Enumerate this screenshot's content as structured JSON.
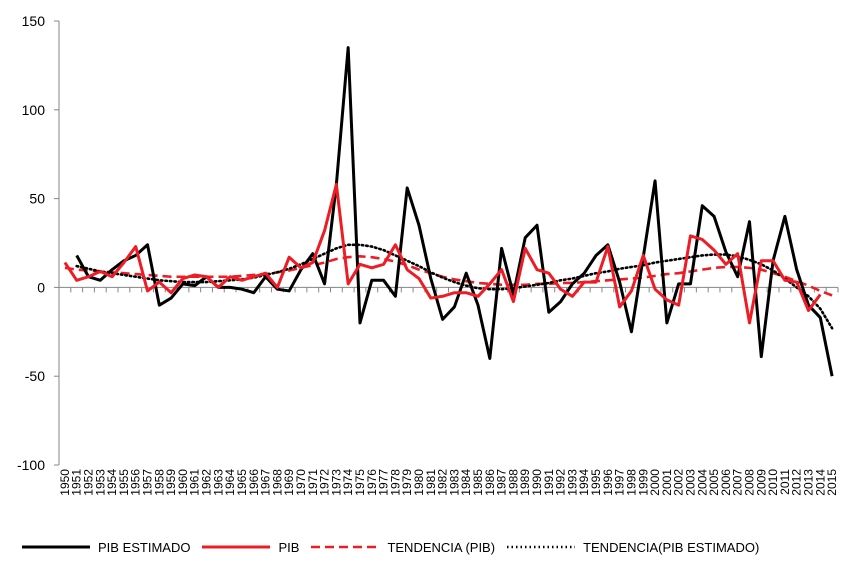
{
  "chart_data": {
    "type": "line",
    "title": "",
    "xlabel": "",
    "ylabel": "",
    "ylim": [
      -100,
      150
    ],
    "yticks": [
      "150",
      "100",
      "50",
      "0",
      "-50",
      "-100"
    ],
    "x": [
      "1950",
      "1951",
      "1952",
      "1953",
      "1954",
      "1955",
      "1956",
      "1957",
      "1958",
      "1959",
      "1960",
      "1961",
      "1962",
      "1963",
      "1964",
      "1965",
      "1966",
      "1967",
      "1968",
      "1969",
      "1970",
      "1971",
      "1972",
      "1973",
      "1974",
      "1975",
      "1976",
      "1977",
      "1978",
      "1979",
      "1980",
      "1981",
      "1982",
      "1983",
      "1984",
      "1985",
      "1986",
      "1987",
      "1988",
      "1989",
      "1990",
      "1991",
      "1992",
      "1993",
      "1994",
      "1995",
      "1996",
      "1997",
      "1998",
      "1999",
      "2000",
      "2001",
      "2002",
      "2003",
      "2004",
      "2005",
      "2006",
      "2007",
      "2008",
      "2009",
      "2010",
      "2011",
      "2012",
      "2013",
      "2014",
      "2015"
    ],
    "grid": false,
    "legend_position": "bottom",
    "series": [
      {
        "name": "PIB ESTIMADO",
        "color": "#000000",
        "style": "solid",
        "values": [
          null,
          18,
          6,
          4,
          10,
          15,
          18,
          24,
          -10,
          -6,
          2,
          1,
          6,
          0,
          0,
          -1,
          -3,
          6,
          -1,
          -2,
          10,
          19,
          2,
          58,
          135,
          -20,
          4,
          4,
          -5,
          56,
          35,
          5,
          -18,
          -11,
          8,
          -10,
          -40,
          22,
          -4,
          28,
          35,
          -14,
          -8,
          2,
          8,
          18,
          24,
          3,
          -25,
          17,
          60,
          -20,
          2,
          2,
          46,
          40,
          20,
          6,
          37,
          -39,
          15,
          40,
          10,
          -10,
          -17,
          -50
        ]
      },
      {
        "name": "PIB",
        "color": "#ee1c25",
        "style": "solid",
        "values": [
          14,
          4,
          6,
          9,
          6,
          14,
          23,
          -2,
          3,
          -3,
          5,
          7,
          6,
          0,
          6,
          4,
          6,
          8,
          0,
          17,
          11,
          14,
          32,
          58,
          2,
          13,
          11,
          13,
          24,
          10,
          5,
          -6,
          -5,
          -3,
          -3,
          -5,
          2,
          10,
          -8,
          22,
          10,
          8,
          -1,
          -5,
          3,
          3,
          23,
          -11,
          -2,
          18,
          -1,
          -7,
          -10,
          29,
          27,
          21,
          13,
          19,
          -20,
          15,
          15,
          4,
          3,
          -13,
          -4,
          null
        ]
      },
      {
        "name": "TENDENCIA (PIB)",
        "color": "#ee1c25",
        "style": "dashed",
        "values": [
          11,
          10,
          9.5,
          9,
          8.5,
          8,
          7.5,
          7,
          6.5,
          6,
          6,
          6,
          6,
          6,
          6,
          6.5,
          7,
          7.5,
          8.5,
          9.5,
          11,
          12.5,
          14,
          16,
          17,
          17.5,
          17,
          16,
          14.5,
          12.5,
          10,
          8,
          6,
          4.5,
          3.5,
          2.5,
          2,
          1.5,
          1.5,
          1.5,
          2,
          2,
          2.5,
          2.5,
          3,
          3.5,
          4,
          4.5,
          5,
          5.5,
          6.5,
          7.5,
          8,
          9,
          10,
          11,
          11.5,
          11.5,
          11,
          10,
          8,
          6,
          3.5,
          1,
          -2,
          -4.5
        ]
      },
      {
        "name": "TENDENCIA(PIB ESTIMADO)",
        "color": "#000000",
        "style": "dotted",
        "values": [
          null,
          12,
          10.5,
          9,
          8,
          7,
          6,
          5,
          4,
          3.5,
          3,
          3,
          3,
          3.5,
          4,
          4.5,
          5.5,
          7,
          8.5,
          10.5,
          13,
          16,
          19,
          22,
          24,
          24,
          23,
          21,
          18,
          15,
          12,
          8.5,
          5.5,
          3,
          1,
          -0.5,
          -1,
          -1,
          -0.5,
          0.5,
          1.5,
          2.5,
          4,
          5,
          6.5,
          8,
          9,
          10.5,
          11.5,
          12.5,
          14,
          15,
          16,
          17,
          18,
          18.5,
          18.5,
          17.5,
          15.5,
          13,
          9.5,
          5,
          0,
          -5,
          -12,
          -23
        ]
      }
    ]
  }
}
